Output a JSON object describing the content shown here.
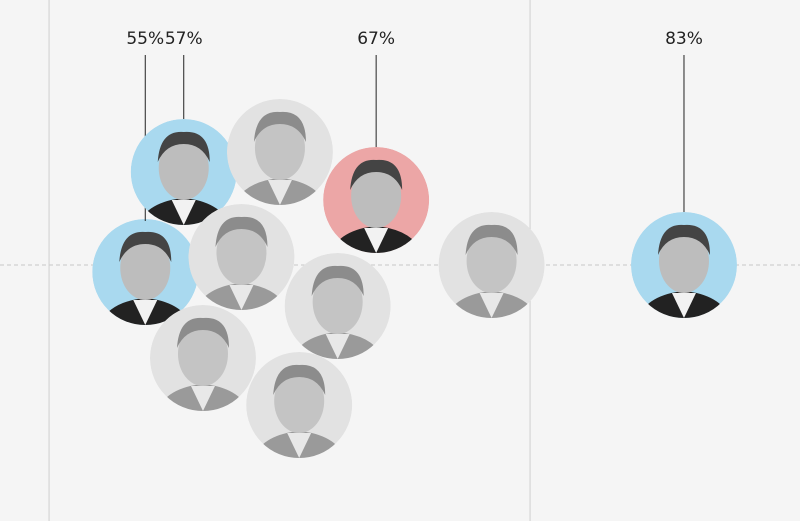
{
  "chart_data": {
    "type": "beeswarm",
    "values": [
      55,
      57,
      62,
      67,
      60,
      65,
      58,
      63,
      73,
      83
    ],
    "value_labels": [
      "55%",
      "57%",
      null,
      "67%",
      null,
      null,
      null,
      null,
      null,
      "83%"
    ],
    "colors": [
      "#a9d9ef",
      "#a9d9ef",
      "#e2e2e2",
      "#eca6a6",
      "#e2e2e2",
      "#e2e2e2",
      "#e2e2e2",
      "#e2e2e2",
      "#e2e2e2",
      "#a9d9ef"
    ],
    "xlim": [
      47.45,
      89.03
    ],
    "reference_lines": [
      50,
      75
    ]
  }
}
